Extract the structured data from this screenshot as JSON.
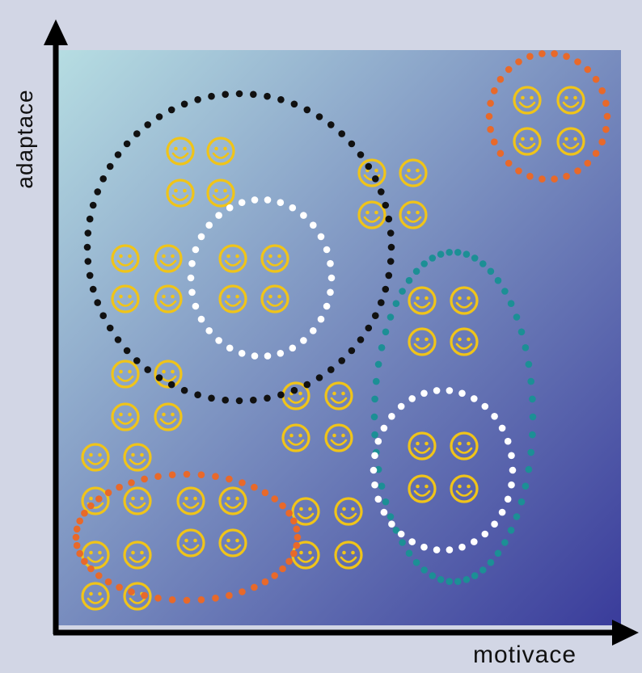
{
  "axes": {
    "x_label": "motivace",
    "y_label": "adaptace"
  },
  "colors": {
    "background": "#d2d6e5",
    "gradient_start": "#b6dde2",
    "gradient_end": "#3a3c9b",
    "axis": "#000000",
    "smiley": "#f0c419",
    "group_black": "#111111",
    "group_white": "#ffffff",
    "group_orange": "#e8692a",
    "group_teal": "#1c8f95"
  },
  "icons": {
    "smiley": "smiley-face-icon"
  }
}
